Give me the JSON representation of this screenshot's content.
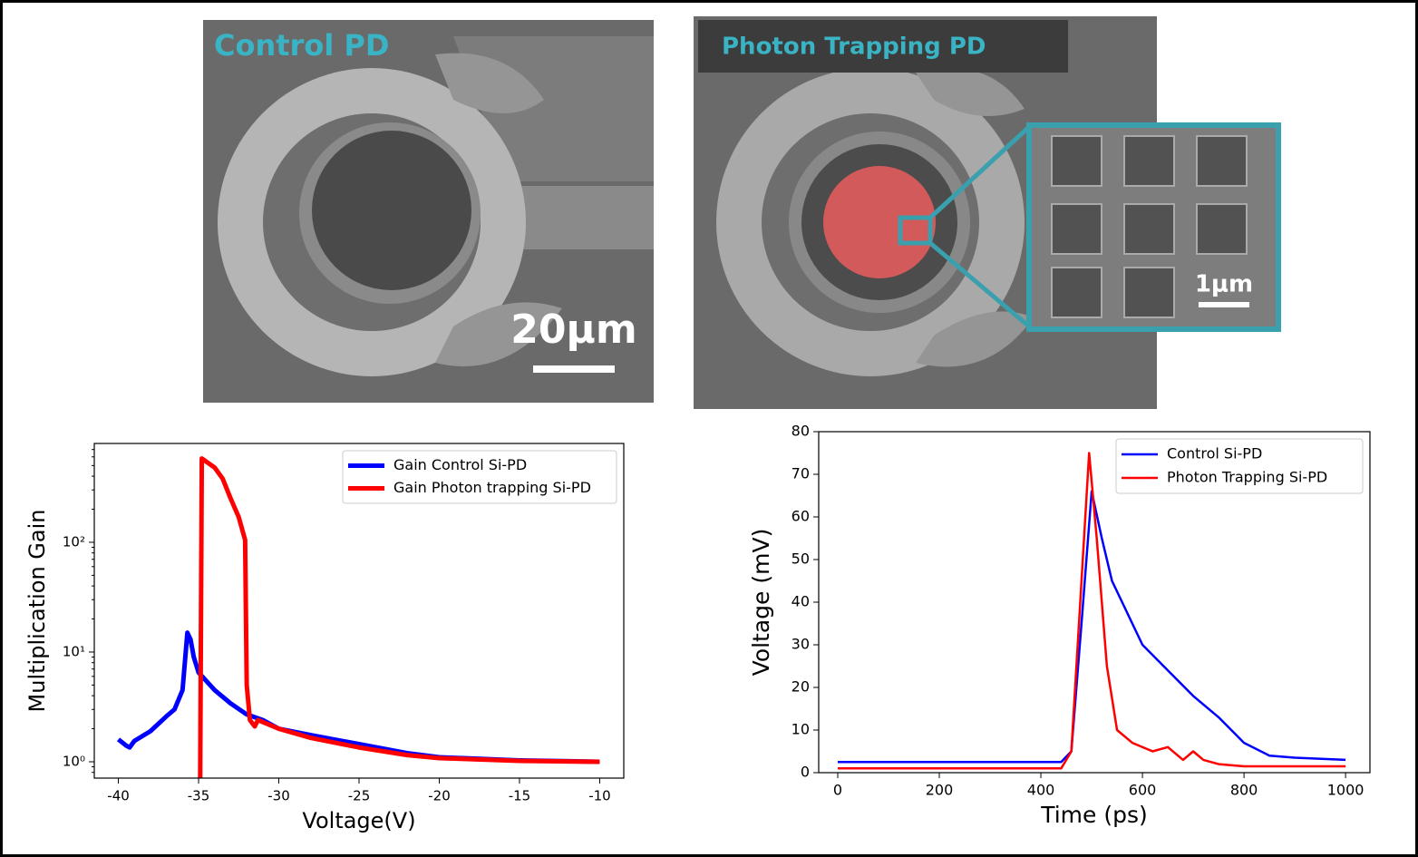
{
  "images": [
    {
      "label": "Control PD",
      "scale_bar": "20μm"
    },
    {
      "label": "Photon Trapping PD",
      "scale_bar": "1μm"
    }
  ],
  "chart_data": [
    {
      "type": "line",
      "log_y": true,
      "xlabel": "Voltage(V)",
      "ylabel": "Multiplication Gain",
      "xlim": [
        -41.5,
        -8.5
      ],
      "xticks": [
        -40,
        -35,
        -30,
        -25,
        -20,
        -15,
        -10
      ],
      "ylim": [
        0.71,
        795
      ],
      "yticks": [
        {
          "value": 1,
          "label": "10⁰"
        },
        {
          "value": 10,
          "label": "10¹"
        },
        {
          "value": 100,
          "label": "10²"
        }
      ],
      "legend": "upper right",
      "series": [
        {
          "name": "Gain Control Si-PD",
          "color": "#0000ff",
          "x": [
            -40,
            -39.5,
            -39.3,
            -39,
            -38,
            -37,
            -36.5,
            -36,
            -35.7,
            -35.5,
            -35.3,
            -35,
            -34,
            -33,
            -32,
            -31,
            -30,
            -28,
            -25,
            -22,
            -20,
            -15,
            -10
          ],
          "values": [
            1.6,
            1.4,
            1.35,
            1.55,
            1.9,
            2.6,
            3.0,
            4.5,
            15,
            13,
            9,
            6.5,
            4.5,
            3.4,
            2.7,
            2.4,
            2.0,
            1.75,
            1.45,
            1.2,
            1.1,
            1.03,
            1.0
          ]
        },
        {
          "name": "Gain Photon trapping Si-PD",
          "color": "#ff0000",
          "x": [
            -34.9,
            -34.8,
            -34,
            -33.5,
            -33,
            -32.5,
            -32.1,
            -32,
            -31.8,
            -31.5,
            -31.3,
            -31,
            -30,
            -28,
            -25,
            -22,
            -20,
            -15,
            -10
          ],
          "values": [
            0.71,
            580,
            480,
            380,
            250,
            170,
            105,
            5,
            2.4,
            2.1,
            2.4,
            2.3,
            2.0,
            1.65,
            1.35,
            1.15,
            1.08,
            1.02,
            1.0
          ]
        }
      ]
    },
    {
      "type": "line",
      "log_y": false,
      "xlabel": "Time (ps)",
      "ylabel": "Voltage (mV)",
      "xlim": [
        -37.5,
        1048
      ],
      "xticks": [
        0,
        200,
        400,
        600,
        800,
        1000
      ],
      "ylim": [
        0,
        80
      ],
      "yticks": [
        0,
        10,
        20,
        30,
        40,
        50,
        60,
        70,
        80
      ],
      "legend": "upper right",
      "series": [
        {
          "name": "Control Si-PD",
          "color": "#0000ff",
          "x": [
            0,
            100,
            200,
            300,
            400,
            440,
            460,
            480,
            500,
            520,
            540,
            560,
            580,
            600,
            650,
            700,
            750,
            800,
            850,
            900,
            1000
          ],
          "values": [
            2.5,
            2.5,
            2.5,
            2.5,
            2.5,
            2.5,
            5,
            35,
            66,
            55,
            45,
            40,
            35,
            30,
            24,
            18,
            13,
            7,
            4,
            3.5,
            3
          ]
        },
        {
          "name": "Photon Trapping Si-PD",
          "color": "#ff0000",
          "x": [
            0,
            100,
            200,
            300,
            400,
            440,
            460,
            480,
            495,
            510,
            530,
            550,
            580,
            620,
            650,
            680,
            700,
            720,
            750,
            800,
            900,
            1000
          ],
          "values": [
            1,
            1,
            1,
            1,
            1,
            1,
            5,
            45,
            75,
            55,
            25,
            10,
            7,
            5,
            6,
            3,
            5,
            3,
            2,
            1.5,
            1.5,
            1.5
          ]
        }
      ]
    }
  ]
}
